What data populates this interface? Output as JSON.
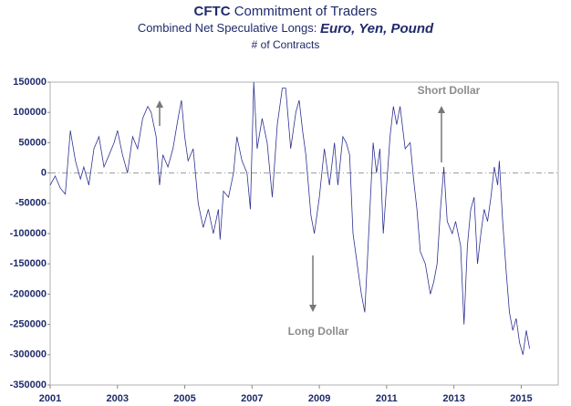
{
  "chart_data": {
    "type": "line",
    "title": [
      "CFTC",
      "Commitment of Traders"
    ],
    "subtitle": [
      "Combined Net Speculative Longs:",
      "Euro, Yen, Pound"
    ],
    "y_label": "# of Contracts",
    "annotations": [
      "Short Dollar",
      "Long Dollar"
    ],
    "x": [
      2001.0,
      2001.15,
      2001.3,
      2001.45,
      2001.6,
      2001.75,
      2001.9,
      2002.0,
      2002.15,
      2002.3,
      2002.45,
      2002.6,
      2002.75,
      2002.9,
      2003.0,
      2003.15,
      2003.3,
      2003.45,
      2003.6,
      2003.75,
      2003.9,
      2004.0,
      2004.15,
      2004.25,
      2004.35,
      2004.5,
      2004.65,
      2004.8,
      2004.9,
      2005.0,
      2005.1,
      2005.25,
      2005.4,
      2005.55,
      2005.7,
      2005.85,
      2006.0,
      2006.05,
      2006.15,
      2006.3,
      2006.45,
      2006.55,
      2006.7,
      2006.85,
      2006.95,
      2007.05,
      2007.15,
      2007.3,
      2007.45,
      2007.6,
      2007.75,
      2007.9,
      2008.0,
      2008.15,
      2008.3,
      2008.4,
      2008.5,
      2008.6,
      2008.75,
      2008.85,
      2009.0,
      2009.15,
      2009.3,
      2009.45,
      2009.55,
      2009.7,
      2009.8,
      2009.9,
      2010.0,
      2010.15,
      2010.25,
      2010.35,
      2010.45,
      2010.6,
      2010.7,
      2010.8,
      2010.9,
      2011.0,
      2011.1,
      2011.2,
      2011.3,
      2011.4,
      2011.55,
      2011.7,
      2011.8,
      2011.9,
      2012.0,
      2012.15,
      2012.3,
      2012.4,
      2012.5,
      2012.6,
      2012.7,
      2012.8,
      2012.95,
      2013.05,
      2013.2,
      2013.3,
      2013.4,
      2013.5,
      2013.6,
      2013.7,
      2013.8,
      2013.9,
      2014.0,
      2014.1,
      2014.2,
      2014.3,
      2014.35,
      2014.45,
      2014.55,
      2014.65,
      2014.75,
      2014.85,
      2014.95,
      2015.05,
      2015.15,
      2015.25
    ],
    "series": [
      {
        "name": "Net Speculative Longs",
        "color": "#2e3192",
        "values": [
          -20000,
          -5000,
          -25000,
          -35000,
          70000,
          20000,
          -10000,
          10000,
          -20000,
          40000,
          60000,
          10000,
          30000,
          50000,
          70000,
          30000,
          0,
          60000,
          40000,
          90000,
          110000,
          100000,
          60000,
          -20000,
          30000,
          10000,
          40000,
          90000,
          120000,
          60000,
          20000,
          40000,
          -50000,
          -90000,
          -60000,
          -100000,
          -60000,
          -110000,
          -30000,
          -40000,
          0,
          60000,
          20000,
          0,
          -60000,
          150000,
          40000,
          90000,
          50000,
          -40000,
          80000,
          140000,
          140000,
          40000,
          100000,
          120000,
          70000,
          30000,
          -70000,
          -100000,
          -40000,
          40000,
          -20000,
          50000,
          -20000,
          60000,
          50000,
          30000,
          -100000,
          -160000,
          -200000,
          -230000,
          -120000,
          50000,
          0,
          40000,
          -100000,
          -20000,
          60000,
          110000,
          80000,
          110000,
          40000,
          50000,
          -10000,
          -60000,
          -130000,
          -150000,
          -200000,
          -180000,
          -150000,
          -60000,
          10000,
          -80000,
          -100000,
          -80000,
          -120000,
          -250000,
          -120000,
          -60000,
          -40000,
          -150000,
          -100000,
          -60000,
          -80000,
          -40000,
          10000,
          -20000,
          20000,
          -80000,
          -160000,
          -230000,
          -260000,
          -240000,
          -280000,
          -300000,
          -260000,
          -290000
        ]
      }
    ],
    "xlim": [
      2001,
      2016.1
    ],
    "xticks": [
      2001,
      2003,
      2005,
      2007,
      2009,
      2011,
      2013,
      2015
    ],
    "ylim": [
      -350000,
      150000
    ],
    "yticks": [
      -350000,
      -300000,
      -250000,
      -200000,
      -150000,
      -100000,
      -50000,
      0,
      50000,
      100000,
      150000
    ]
  }
}
